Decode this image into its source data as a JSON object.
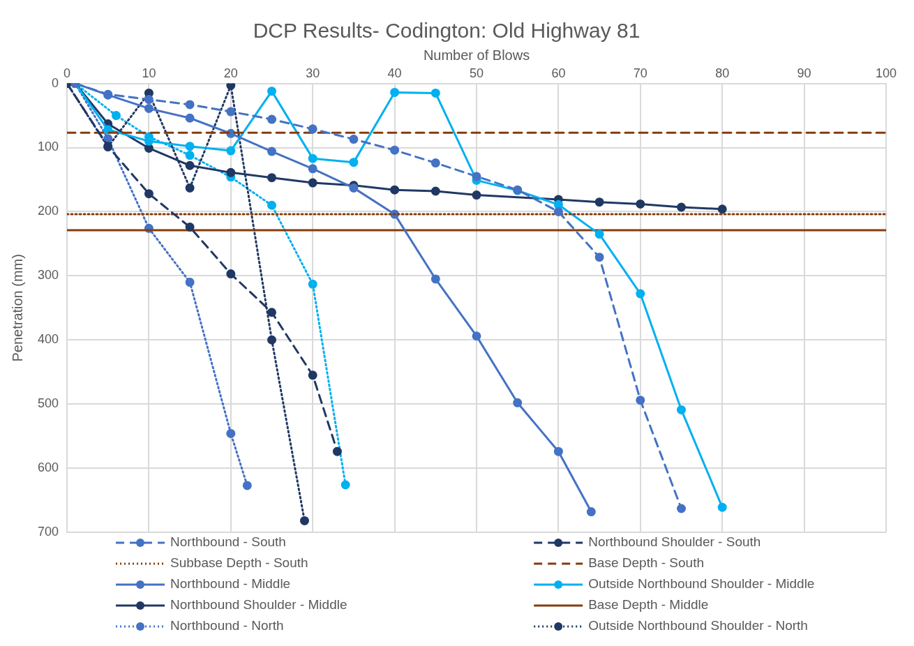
{
  "chart_data": {
    "type": "line",
    "title": "DCP Results- Codington: Old Highway 81",
    "xlabel": "Number of Blows",
    "ylabel": "Penetration (mm)",
    "xlim": [
      0,
      100
    ],
    "xticks": [
      0,
      10,
      20,
      30,
      40,
      50,
      60,
      70,
      80,
      90,
      100
    ],
    "ylim": [
      700,
      0
    ],
    "yticks": [
      0,
      100,
      200,
      300,
      400,
      500,
      600,
      700
    ],
    "grid": true,
    "legend": "bottom",
    "series": [
      {
        "name": "Northbound - South",
        "color": "#4472c4",
        "line_style": "dashed",
        "marker": "circle",
        "x": [
          1,
          5,
          10,
          15,
          20,
          25,
          30,
          35,
          40,
          45,
          50,
          55,
          60,
          65,
          70,
          75
        ],
        "values": [
          0,
          17,
          25,
          33,
          44,
          56,
          71,
          87,
          104,
          124,
          145,
          166,
          200,
          271,
          494,
          663
        ]
      },
      {
        "name": "Northbound Shoulder - South",
        "color": "#203864",
        "line_style": "dashed",
        "marker": "circle",
        "x": [
          0,
          5,
          10,
          15,
          20,
          25,
          30,
          33
        ],
        "values": [
          0,
          98,
          172,
          224,
          297,
          357,
          455,
          574
        ]
      },
      {
        "name": "Subbase Depth - South",
        "color": "#843c0c",
        "line_style": "dotted",
        "marker": "none",
        "x": [
          0,
          100
        ],
        "values": [
          204,
          204
        ]
      },
      {
        "name": "Base Depth - South",
        "color": "#843c0c",
        "line_style": "dashed",
        "marker": "none",
        "x": [
          0,
          100
        ],
        "values": [
          77,
          77
        ]
      },
      {
        "name": "Northbound - Middle",
        "color": "#4472c4",
        "line_style": "solid",
        "marker": "circle",
        "x": [
          1,
          5,
          10,
          15,
          20,
          25,
          30,
          35,
          40,
          45,
          50,
          55,
          60,
          64
        ],
        "values": [
          0,
          18,
          39,
          54,
          78,
          106,
          133,
          163,
          204,
          305,
          394,
          498,
          574,
          668
        ]
      },
      {
        "name": "Outside Northbound Shoulder - Middle",
        "color": "#00b0f0",
        "line_style": "solid",
        "marker": "circle",
        "x": [
          1,
          5,
          10,
          15,
          20,
          25,
          30,
          35,
          40,
          45,
          50,
          55,
          60,
          65,
          70,
          75,
          80
        ],
        "values": [
          0,
          72,
          90,
          98,
          105,
          12,
          117,
          123,
          14,
          15,
          151,
          167,
          189,
          235,
          328,
          509,
          661
        ]
      },
      {
        "name": "Northbound Shoulder - Middle",
        "color": "#203864",
        "line_style": "solid",
        "marker": "circle",
        "x": [
          1,
          5,
          10,
          15,
          20,
          25,
          30,
          35,
          40,
          45,
          50,
          60,
          65,
          70,
          75,
          80
        ],
        "values": [
          0,
          63,
          101,
          128,
          139,
          147,
          155,
          159,
          166,
          168,
          174,
          181,
          185,
          188,
          193,
          196
        ]
      },
      {
        "name": "Base Depth - Middle",
        "color": "#843c0c",
        "line_style": "solid",
        "marker": "none",
        "x": [
          0,
          100
        ],
        "values": [
          229,
          229
        ]
      },
      {
        "name": "Northbound - North",
        "color": "#4472c4",
        "line_style": "dotted",
        "marker": "circle",
        "x": [
          1,
          5,
          10,
          15,
          20,
          22
        ],
        "values": [
          0,
          86,
          226,
          310,
          546,
          627
        ]
      },
      {
        "name": "Outside Northbound Shoulder - North",
        "color": "#203864",
        "line_style": "dotted",
        "marker": "circle",
        "x": [
          0,
          5,
          10,
          15,
          20,
          25,
          29
        ],
        "values": [
          0,
          99,
          15,
          163,
          3,
          400,
          682
        ]
      },
      {
        "color": "#00b0f0",
        "line_style": "dotted",
        "marker": "circle",
        "x": [
          1,
          6,
          10,
          15,
          20,
          25,
          30,
          34
        ],
        "values": [
          0,
          50,
          83,
          112,
          146,
          190,
          313,
          626
        ]
      }
    ]
  }
}
